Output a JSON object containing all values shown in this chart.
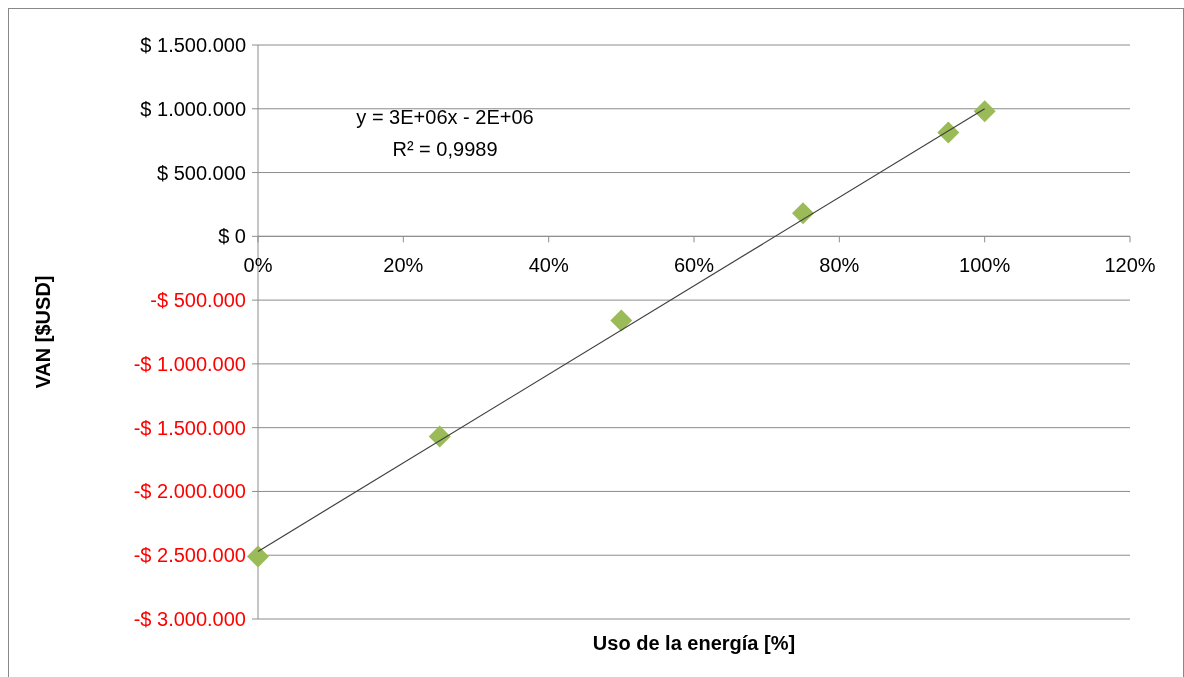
{
  "chart_data": {
    "type": "scatter",
    "xlabel": "Uso de la energía [%]",
    "ylabel": "VAN [$USD]",
    "xlim": [
      0,
      1.2
    ],
    "xticks": [
      {
        "value": 0,
        "label": "0%"
      },
      {
        "value": 0.2,
        "label": "20%"
      },
      {
        "value": 0.4,
        "label": "40%"
      },
      {
        "value": 0.6,
        "label": "60%"
      },
      {
        "value": 0.8,
        "label": "80%"
      },
      {
        "value": 1,
        "label": "100%"
      },
      {
        "value": 1.2,
        "label": "120%"
      }
    ],
    "ylim": [
      -3000000,
      1500000
    ],
    "yticks": [
      {
        "value": -3000000,
        "label": "-$ 3.000.000"
      },
      {
        "value": -2500000,
        "label": "-$ 2.500.000"
      },
      {
        "value": -2000000,
        "label": "-$ 2.000.000"
      },
      {
        "value": -1500000,
        "label": "-$ 1.500.000"
      },
      {
        "value": -1000000,
        "label": "-$ 1.000.000"
      },
      {
        "value": -500000,
        "label": "-$ 500.000"
      },
      {
        "value": 0,
        "label": "$ 0"
      },
      {
        "value": 500000,
        "label": "$ 500.000"
      },
      {
        "value": 1000000,
        "label": "$ 1.000.000"
      },
      {
        "value": 1500000,
        "label": "$ 1.500.000"
      }
    ],
    "grid": "y",
    "annotations": [
      "y = 3E+06x - 2E+06",
      "R² = 0,9989"
    ],
    "series": [
      {
        "marker": "diamond",
        "color": "#9bbb59",
        "x": [
          0,
          0.25,
          0.5,
          0.75,
          0.95,
          1
        ],
        "values": [
          -2510000,
          -1570000,
          -660000,
          180000,
          815000,
          980000
        ]
      },
      {
        "type": "line",
        "marker": "none",
        "color": "#404040",
        "x": [
          0,
          1
        ],
        "values": [
          -2470000,
          1000000
        ]
      }
    ]
  }
}
